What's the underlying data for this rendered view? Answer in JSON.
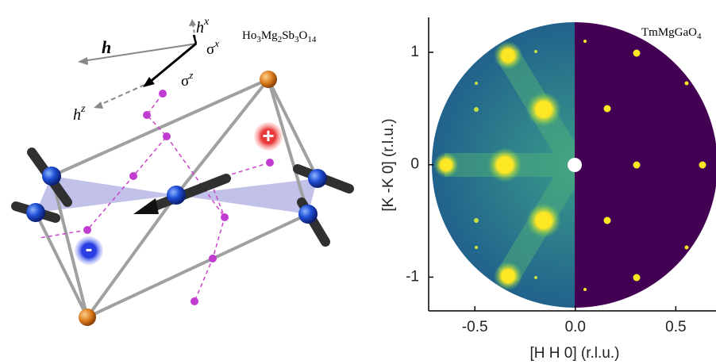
{
  "left_panel": {
    "formula_parts": [
      "Ho",
      "3",
      "Mg",
      "2",
      "Sb",
      "3",
      "O",
      "14"
    ],
    "h": "h",
    "hx": [
      "h",
      "x"
    ],
    "hz": [
      "h",
      "z"
    ],
    "sigma_x": [
      "σ",
      "x"
    ],
    "sigma_z": [
      "σ",
      "z"
    ],
    "plus": "+",
    "minus": "-"
  },
  "right_panel": {
    "title_parts": [
      "TmMgGaO",
      "4"
    ],
    "xlabel": "[H H 0] (r.l.u.)",
    "ylabel": "[K -K 0] (r.l.u.)",
    "xlim": [
      -0.73,
      0.7
    ],
    "ylim": [
      -1.3,
      1.31
    ],
    "xticks": [
      -0.5,
      {
        "value": 0,
        "label": "0.0"
      },
      0.5
    ],
    "yticks": [
      -1,
      0,
      1
    ]
  }
}
